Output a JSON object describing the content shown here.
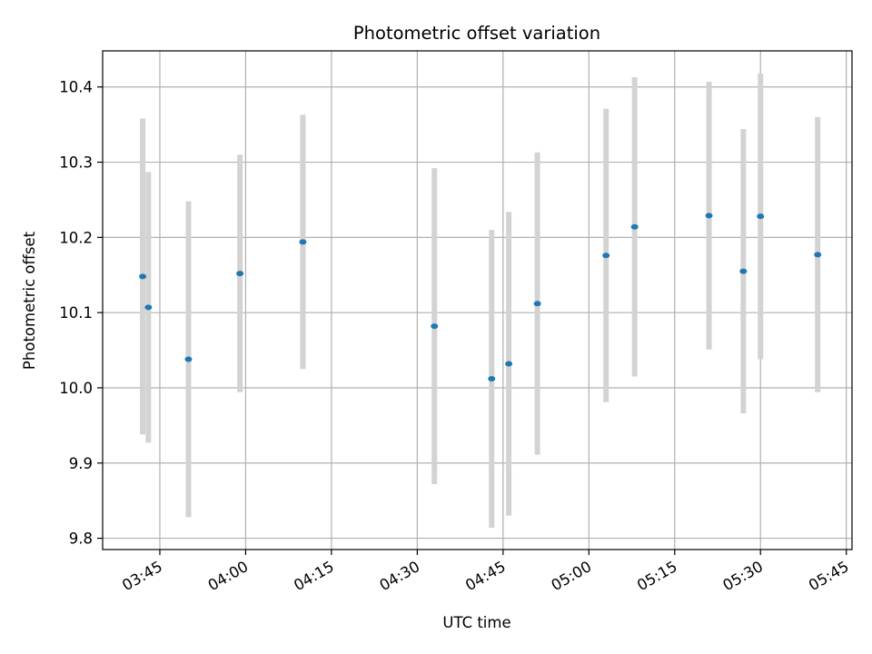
{
  "chart_data": {
    "type": "scatter",
    "title": "Photometric offset variation",
    "xlabel": "UTC time",
    "ylabel": "Photometric offset",
    "x_ticks": [
      "03:45",
      "04:00",
      "04:15",
      "04:30",
      "04:45",
      "05:00",
      "05:15",
      "05:30",
      "05:45"
    ],
    "y_ticks": [
      "9.8",
      "9.9",
      "10.0",
      "10.1",
      "10.2",
      "10.3",
      "10.4"
    ],
    "xlim": [
      "03:35",
      "05:46"
    ],
    "ylim": [
      9.785,
      10.448
    ],
    "grid": true,
    "points": [
      {
        "x": "03:42",
        "y": 10.148,
        "err": 0.21
      },
      {
        "x": "03:43",
        "y": 10.107,
        "err": 0.18
      },
      {
        "x": "03:50",
        "y": 10.038,
        "err": 0.21
      },
      {
        "x": "03:59",
        "y": 10.152,
        "err": 0.158
      },
      {
        "x": "04:10",
        "y": 10.194,
        "err": 0.169
      },
      {
        "x": "04:33",
        "y": 10.082,
        "err": 0.21
      },
      {
        "x": "04:43",
        "y": 10.012,
        "err": 0.198
      },
      {
        "x": "04:46",
        "y": 10.032,
        "err": 0.202
      },
      {
        "x": "04:51",
        "y": 10.112,
        "err": 0.201
      },
      {
        "x": "05:03",
        "y": 10.176,
        "err": 0.195
      },
      {
        "x": "05:08",
        "y": 10.214,
        "err": 0.199
      },
      {
        "x": "05:21",
        "y": 10.229,
        "err": 0.178
      },
      {
        "x": "05:27",
        "y": 10.155,
        "err": 0.189
      },
      {
        "x": "05:30",
        "y": 10.228,
        "err": 0.19
      },
      {
        "x": "05:40",
        "y": 10.177,
        "err": 0.183
      }
    ],
    "colors": {
      "marker": "#1f77b4",
      "errorbar": "#d3d3d3",
      "grid": "#b0b0b0",
      "axes": "#000000"
    }
  }
}
